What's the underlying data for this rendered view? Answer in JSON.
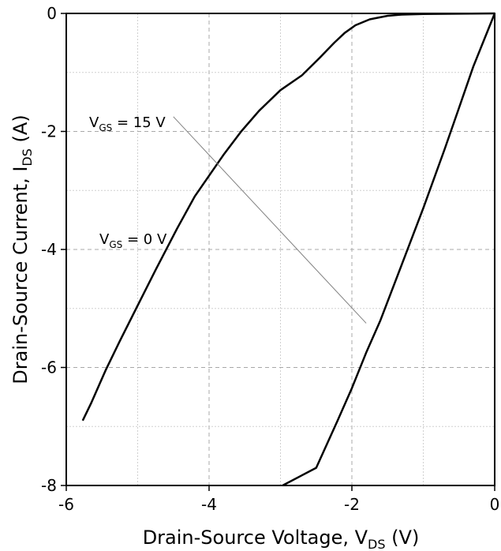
{
  "chart_data": {
    "type": "line",
    "title": "",
    "xlabel": {
      "main": "Drain-Source Voltage, V",
      "sub": "DS",
      "tail": " (V)"
    },
    "ylabel": {
      "main": "Drain-Source Current, I",
      "sub": "DS",
      "tail": " (A)"
    },
    "xlim": [
      -6,
      0
    ],
    "ylim": [
      -8,
      0
    ],
    "xticks": [
      -6,
      -4,
      -2,
      0
    ],
    "yticks": [
      -8,
      -6,
      -4,
      -2,
      0
    ],
    "xtick_labels": [
      "-6",
      "-4",
      "-2",
      "0"
    ],
    "ytick_labels": [
      "-8",
      "-6",
      "-4",
      "-2",
      "0"
    ],
    "grid": true,
    "series": [
      {
        "name": "VGS = 15 V",
        "points": [
          [
            0,
            0
          ],
          [
            -0.1,
            -0.3
          ],
          [
            -0.3,
            -0.9
          ],
          [
            -0.5,
            -1.6
          ],
          [
            -0.7,
            -2.3
          ],
          [
            -1.0,
            -3.3
          ],
          [
            -1.3,
            -4.25
          ],
          [
            -1.6,
            -5.2
          ],
          [
            -1.8,
            -5.75
          ],
          [
            -2.0,
            -6.35
          ],
          [
            -2.2,
            -6.9
          ],
          [
            -2.5,
            -7.7
          ],
          [
            -2.97,
            -8.0
          ]
        ]
      },
      {
        "name": "VGS = 0 V",
        "points": [
          [
            0,
            0
          ],
          [
            -0.5,
            -0.005
          ],
          [
            -1.0,
            -0.01
          ],
          [
            -1.3,
            -0.02
          ],
          [
            -1.5,
            -0.04
          ],
          [
            -1.75,
            -0.1
          ],
          [
            -1.95,
            -0.2
          ],
          [
            -2.1,
            -0.33
          ],
          [
            -2.25,
            -0.5
          ],
          [
            -2.45,
            -0.75
          ],
          [
            -2.7,
            -1.05
          ],
          [
            -3.0,
            -1.3
          ],
          [
            -3.3,
            -1.65
          ],
          [
            -3.55,
            -2.0
          ],
          [
            -3.8,
            -2.4
          ],
          [
            -4.0,
            -2.75
          ],
          [
            -4.2,
            -3.1
          ],
          [
            -4.45,
            -3.65
          ],
          [
            -4.75,
            -4.35
          ],
          [
            -5.0,
            -4.95
          ],
          [
            -5.25,
            -5.55
          ],
          [
            -5.45,
            -6.05
          ],
          [
            -5.65,
            -6.6
          ],
          [
            -5.77,
            -6.9
          ]
        ]
      }
    ],
    "annotations": [
      {
        "main": "V",
        "sub": "GS",
        "tail": " = 15 V"
      },
      {
        "main": "V",
        "sub": "GS",
        "tail": " = 0 V"
      }
    ]
  }
}
